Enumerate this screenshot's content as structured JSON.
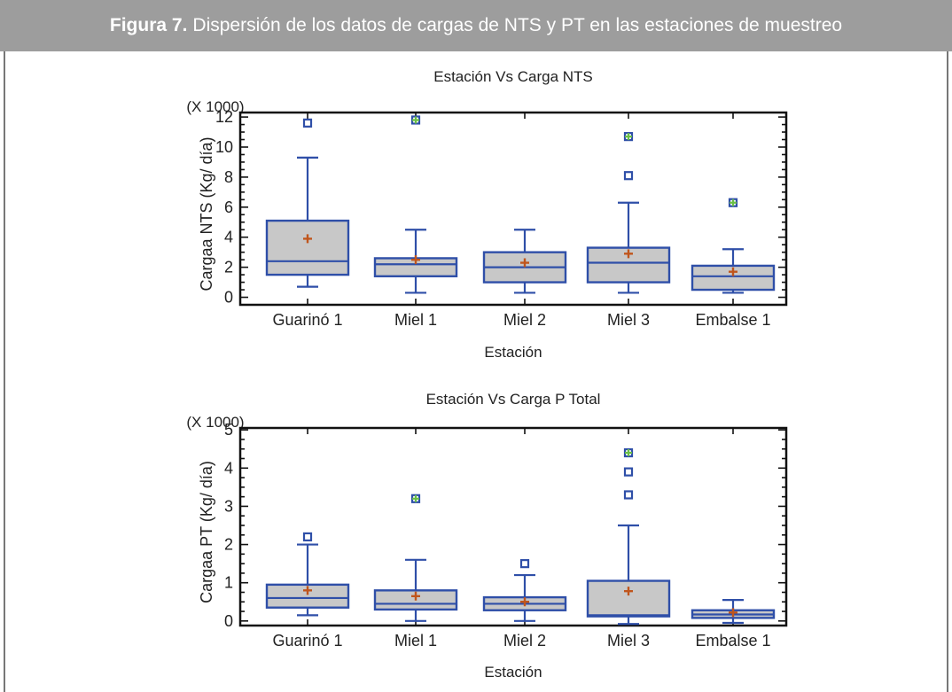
{
  "header": {
    "label": "Figura 7.",
    "caption": "Dispersión de los datos de cargas de NTS y PT en las estaciones de muestreo"
  },
  "colors": {
    "header_bg": "#9d9d9d",
    "box_fill": "#c8c8c8",
    "box_stroke": "#2f4fa8",
    "mean_marker": "#c0551c",
    "outlier": "#2f4fa8",
    "far_outlier_cross": "#6abf45"
  },
  "chart_data": [
    {
      "type": "box",
      "title": "Estación Vs Carga NTS",
      "xlabel": "Estación",
      "ylabel": "Cargaa NTS (Kg/ día)",
      "multiplier_label": "(X 1000)",
      "ylim": [
        -0.5,
        12.3
      ],
      "yticks": [
        0,
        2,
        4,
        6,
        8,
        10,
        12
      ],
      "categories": [
        "Guarinó 1",
        "Miel 1",
        "Miel 2",
        "Miel 3",
        "Embalse 1"
      ],
      "series": [
        {
          "category": "Guarinó 1",
          "whisker_low": 0.7,
          "q1": 1.5,
          "median": 2.4,
          "q3": 5.1,
          "whisker_high": 9.3,
          "mean": 3.9,
          "outliers": [
            11.6
          ],
          "far_outliers": []
        },
        {
          "category": "Miel 1",
          "whisker_low": 0.3,
          "q1": 1.4,
          "median": 2.2,
          "q3": 2.6,
          "whisker_high": 4.5,
          "mean": 2.5,
          "outliers": [],
          "far_outliers": [
            11.8
          ]
        },
        {
          "category": "Miel 2",
          "whisker_low": 0.3,
          "q1": 1.0,
          "median": 2.0,
          "q3": 3.0,
          "whisker_high": 4.5,
          "mean": 2.3,
          "outliers": [],
          "far_outliers": []
        },
        {
          "category": "Miel 3",
          "whisker_low": 0.3,
          "q1": 1.0,
          "median": 2.3,
          "q3": 3.3,
          "whisker_high": 6.3,
          "mean": 2.9,
          "outliers": [
            8.1
          ],
          "far_outliers": [
            10.7
          ]
        },
        {
          "category": "Embalse 1",
          "whisker_low": 0.3,
          "q1": 0.5,
          "median": 1.4,
          "q3": 2.1,
          "whisker_high": 3.2,
          "mean": 1.7,
          "outliers": [],
          "far_outliers": [
            6.3
          ]
        }
      ]
    },
    {
      "type": "box",
      "title": "Estación Vs Carga P Total",
      "xlabel": "Estación",
      "ylabel": "Cargaa PT (Kg/ día)",
      "multiplier_label": "(X 1000)",
      "ylim": [
        -0.12,
        5.05
      ],
      "yticks": [
        0,
        1,
        2,
        3,
        4,
        5
      ],
      "categories": [
        "Guarinó 1",
        "Miel 1",
        "Miel 2",
        "Miel 3",
        "Embalse 1"
      ],
      "series": [
        {
          "category": "Guarinó 1",
          "whisker_low": 0.15,
          "q1": 0.35,
          "median": 0.6,
          "q3": 0.95,
          "whisker_high": 2.0,
          "mean": 0.8,
          "outliers": [
            2.2
          ],
          "far_outliers": []
        },
        {
          "category": "Miel 1",
          "whisker_low": 0.0,
          "q1": 0.3,
          "median": 0.45,
          "q3": 0.8,
          "whisker_high": 1.6,
          "mean": 0.65,
          "outliers": [],
          "far_outliers": [
            3.2
          ]
        },
        {
          "category": "Miel 2",
          "whisker_low": 0.0,
          "q1": 0.28,
          "median": 0.45,
          "q3": 0.62,
          "whisker_high": 1.2,
          "mean": 0.5,
          "outliers": [
            1.5
          ],
          "far_outliers": []
        },
        {
          "category": "Miel 3",
          "whisker_low": -0.08,
          "q1": 0.12,
          "median": 0.15,
          "q3": 1.05,
          "whisker_high": 2.5,
          "mean": 0.78,
          "outliers": [
            3.3,
            3.9
          ],
          "far_outliers": [
            4.4
          ]
        },
        {
          "category": "Embalse 1",
          "whisker_low": -0.05,
          "q1": 0.08,
          "median": 0.17,
          "q3": 0.28,
          "whisker_high": 0.55,
          "mean": 0.22,
          "outliers": [],
          "far_outliers": []
        }
      ]
    }
  ]
}
